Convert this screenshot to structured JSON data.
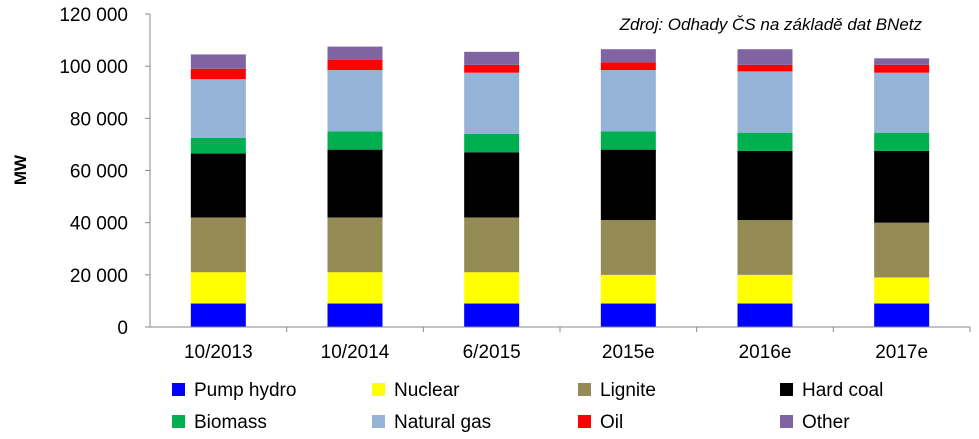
{
  "chart_data": {
    "type": "bar",
    "stacked": true,
    "source_note": "Zdroj: Odhady ČS na základě dat BNetz",
    "ylabel": "MW",
    "ylim": [
      0,
      120000
    ],
    "yticks": [
      0,
      20000,
      40000,
      60000,
      80000,
      100000,
      120000
    ],
    "ytick_labels": [
      "0",
      "20 000",
      "40 000",
      "60 000",
      "80 000",
      "100 000",
      "120 000"
    ],
    "categories": [
      "10/2013",
      "10/2014",
      "6/2015",
      "2015e",
      "2016e",
      "2017e"
    ],
    "grid": false,
    "legend_position": "bottom",
    "series": [
      {
        "name": "Pump hydro",
        "color": "#0000ff",
        "values": [
          9000,
          9000,
          9000,
          9000,
          9000,
          9000
        ]
      },
      {
        "name": "Nuclear",
        "color": "#ffff00",
        "values": [
          12000,
          12000,
          12000,
          11000,
          11000,
          10000
        ]
      },
      {
        "name": "Lignite",
        "color": "#948a54",
        "values": [
          21000,
          21000,
          21000,
          21000,
          21000,
          21000
        ]
      },
      {
        "name": "Hard coal",
        "color": "#000000",
        "values": [
          24500,
          26000,
          25000,
          27000,
          26500,
          27500
        ]
      },
      {
        "name": "Biomass",
        "color": "#00b050",
        "values": [
          6000,
          7000,
          7000,
          7000,
          7000,
          7000
        ]
      },
      {
        "name": "Natural gas",
        "color": "#95b3d7",
        "values": [
          22500,
          23500,
          23500,
          23500,
          23500,
          23000
        ]
      },
      {
        "name": "Oil",
        "color": "#ff0000",
        "values": [
          4000,
          4000,
          3000,
          3000,
          2500,
          3000
        ]
      },
      {
        "name": "Other",
        "color": "#8064a2",
        "values": [
          5500,
          5000,
          5000,
          5000,
          6000,
          2500
        ]
      }
    ]
  }
}
